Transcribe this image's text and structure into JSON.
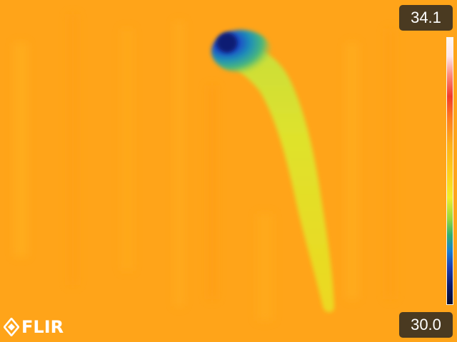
{
  "scale": {
    "max_label": "34.1",
    "min_label": "30.0"
  },
  "brand": {
    "logo_text": "FLIR"
  },
  "colors": {
    "background": "#ffa419",
    "label_box": "#4a3a21",
    "cool_blob": "#1a47c8",
    "body_yellow": "#e6e32a"
  }
}
